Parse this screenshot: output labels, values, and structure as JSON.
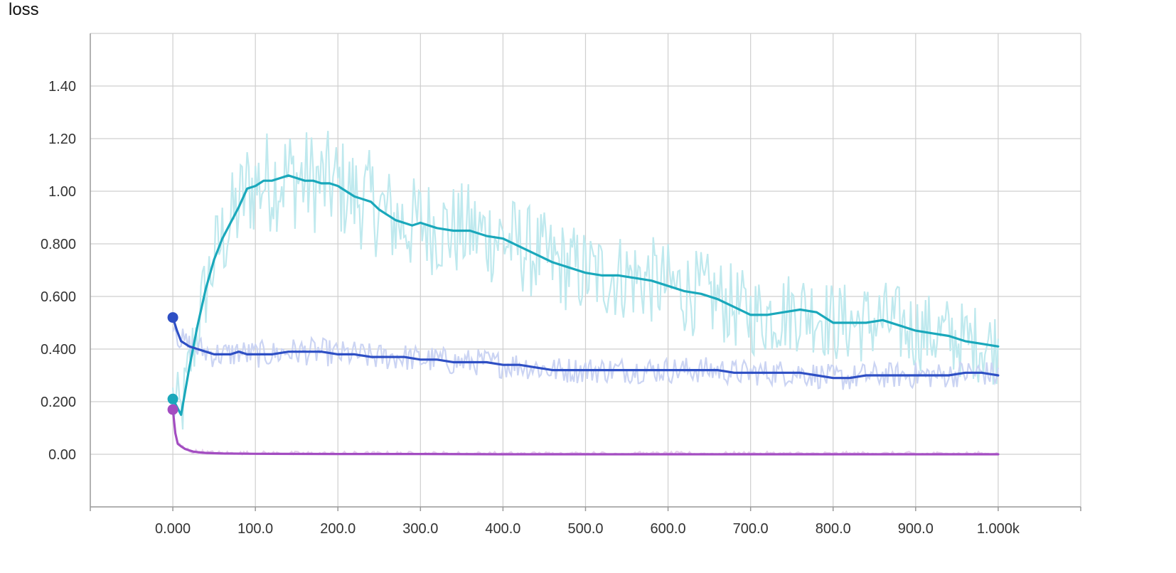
{
  "title": "loss",
  "chart_data": {
    "type": "line",
    "title": "loss",
    "xlabel": "",
    "ylabel": "",
    "xlim": [
      -100,
      1100
    ],
    "ylim": [
      -0.2,
      1.6
    ],
    "x_ticks": [
      0,
      100,
      200,
      300,
      400,
      500,
      600,
      700,
      800,
      900,
      1000
    ],
    "x_tick_labels": [
      "0.000",
      "100.0",
      "200.0",
      "300.0",
      "400.0",
      "500.0",
      "600.0",
      "700.0",
      "800.0",
      "900.0",
      "1.000k"
    ],
    "y_ticks": [
      0,
      0.2,
      0.4,
      0.6,
      0.8,
      1.0,
      1.2,
      1.4
    ],
    "y_tick_labels": [
      "0.00",
      "0.200",
      "0.400",
      "0.600",
      "0.800",
      "1.00",
      "1.20",
      "1.40"
    ],
    "grid": true,
    "legend": "none",
    "series": [
      {
        "color": "#1aa8bb",
        "raw_color": "#bfe9ee",
        "noise": 0.14,
        "x": [
          0,
          10,
          20,
          30,
          40,
          50,
          60,
          70,
          80,
          90,
          100,
          110,
          120,
          130,
          140,
          150,
          160,
          170,
          180,
          190,
          200,
          210,
          220,
          230,
          240,
          250,
          260,
          270,
          280,
          290,
          300,
          320,
          340,
          360,
          380,
          400,
          420,
          440,
          460,
          480,
          500,
          520,
          540,
          560,
          580,
          600,
          620,
          640,
          660,
          680,
          700,
          720,
          740,
          760,
          780,
          800,
          820,
          840,
          860,
          880,
          900,
          920,
          940,
          960,
          980,
          1000
        ],
        "y": [
          0.21,
          0.15,
          0.33,
          0.49,
          0.63,
          0.74,
          0.82,
          0.88,
          0.94,
          1.01,
          1.02,
          1.04,
          1.04,
          1.05,
          1.06,
          1.05,
          1.04,
          1.04,
          1.03,
          1.03,
          1.02,
          1.0,
          0.98,
          0.97,
          0.96,
          0.93,
          0.91,
          0.89,
          0.88,
          0.87,
          0.88,
          0.86,
          0.85,
          0.85,
          0.83,
          0.82,
          0.79,
          0.76,
          0.73,
          0.71,
          0.69,
          0.68,
          0.68,
          0.67,
          0.66,
          0.64,
          0.62,
          0.61,
          0.59,
          0.56,
          0.53,
          0.53,
          0.54,
          0.55,
          0.54,
          0.5,
          0.5,
          0.5,
          0.51,
          0.49,
          0.47,
          0.46,
          0.45,
          0.43,
          0.42,
          0.41
        ]
      },
      {
        "color": "#2e4fc4",
        "raw_color": "#cbd4f3",
        "noise": 0.05,
        "x": [
          0,
          5,
          10,
          20,
          30,
          40,
          50,
          60,
          70,
          80,
          90,
          100,
          120,
          140,
          160,
          180,
          200,
          220,
          240,
          260,
          280,
          300,
          320,
          340,
          360,
          380,
          400,
          420,
          440,
          460,
          480,
          500,
          520,
          540,
          560,
          580,
          600,
          620,
          640,
          660,
          680,
          700,
          720,
          740,
          760,
          780,
          800,
          820,
          840,
          860,
          880,
          900,
          920,
          940,
          960,
          980,
          1000
        ],
        "y": [
          0.52,
          0.47,
          0.43,
          0.41,
          0.4,
          0.39,
          0.38,
          0.38,
          0.38,
          0.39,
          0.38,
          0.38,
          0.38,
          0.39,
          0.39,
          0.39,
          0.38,
          0.38,
          0.37,
          0.37,
          0.37,
          0.36,
          0.36,
          0.35,
          0.35,
          0.35,
          0.34,
          0.34,
          0.33,
          0.32,
          0.32,
          0.32,
          0.32,
          0.32,
          0.32,
          0.32,
          0.32,
          0.32,
          0.32,
          0.32,
          0.31,
          0.31,
          0.31,
          0.31,
          0.31,
          0.3,
          0.29,
          0.29,
          0.3,
          0.3,
          0.3,
          0.3,
          0.3,
          0.3,
          0.31,
          0.31,
          0.3
        ]
      },
      {
        "color": "#a34dc1",
        "raw_color": "#e6cdee",
        "noise": 0.01,
        "x": [
          0,
          3,
          6,
          10,
          15,
          20,
          25,
          30,
          40,
          60,
          100,
          200,
          300,
          400,
          500,
          600,
          700,
          800,
          900,
          1000
        ],
        "y": [
          0.17,
          0.08,
          0.04,
          0.03,
          0.02,
          0.015,
          0.01,
          0.008,
          0.005,
          0.003,
          0.002,
          0.001,
          0.001,
          0.0,
          0.0,
          0.0,
          0.0,
          0.0,
          0.0,
          0.0
        ]
      }
    ]
  }
}
